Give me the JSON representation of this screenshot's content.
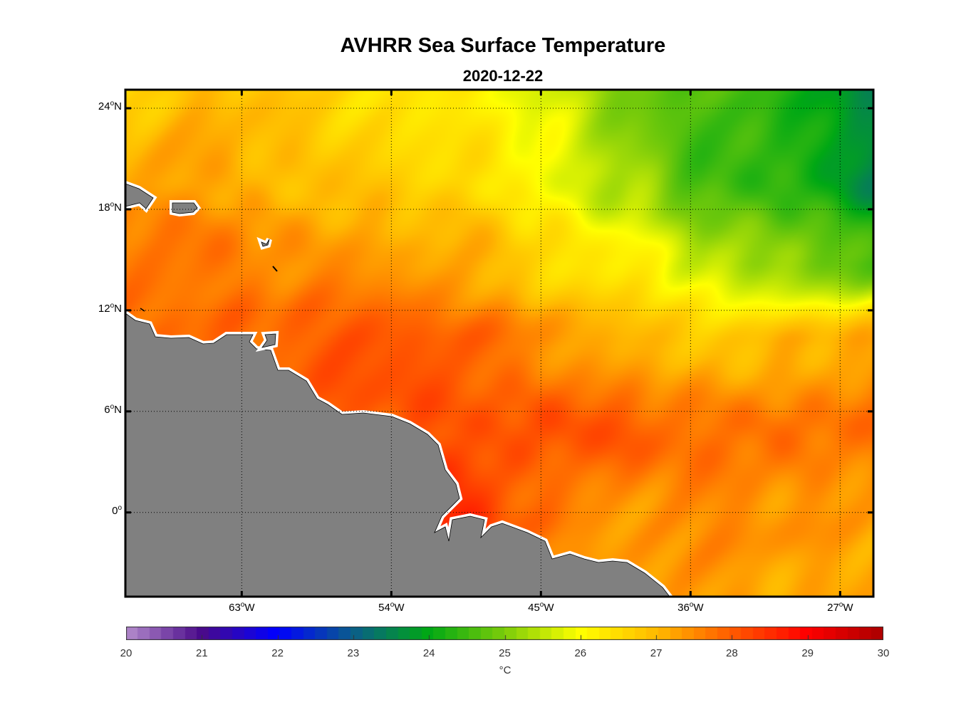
{
  "title": "AVHRR Sea Surface Temperature",
  "subtitle": "2020-12-22",
  "chart_data": {
    "type": "heatmap",
    "title": "AVHRR Sea Surface Temperature",
    "subtitle": "2020-12-22",
    "lon_range": [
      -70,
      -25
    ],
    "lat_range": [
      -5,
      25
    ],
    "grid_lons": [
      -70,
      -65,
      -60,
      -55,
      -50,
      -45,
      -40,
      -35,
      -30,
      -25
    ],
    "grid_lats": [
      25,
      20,
      15,
      10,
      5,
      0,
      -5
    ],
    "sst_celsius": [
      [
        26.5,
        27.0,
        26.8,
        26.5,
        26.3,
        25.8,
        25.0,
        24.7,
        24.3,
        23.5
      ],
      [
        27.3,
        27.2,
        27.0,
        26.8,
        26.5,
        26.0,
        25.3,
        24.5,
        24.2,
        23.6
      ],
      [
        27.8,
        27.7,
        27.5,
        27.3,
        27.2,
        26.6,
        26.2,
        25.5,
        25.0,
        24.7
      ],
      [
        27.9,
        27.8,
        27.9,
        28.1,
        28.0,
        27.5,
        27.0,
        26.8,
        27.0,
        27.3
      ],
      [
        28.0,
        28.0,
        28.0,
        28.0,
        28.1,
        28.2,
        28.0,
        27.7,
        27.8,
        27.8
      ],
      [
        28.0,
        28.0,
        28.0,
        28.2,
        28.6,
        27.7,
        27.4,
        27.5,
        27.4,
        27.3
      ],
      [
        27.5,
        27.5,
        27.5,
        27.5,
        27.5,
        27.5,
        27.3,
        27.3,
        27.2,
        27.2
      ]
    ],
    "x_ticks": [
      {
        "lon": -63,
        "label": "63",
        "suffix": "W"
      },
      {
        "lon": -54,
        "label": "54",
        "suffix": "W"
      },
      {
        "lon": -45,
        "label": "45",
        "suffix": "W"
      },
      {
        "lon": -36,
        "label": "36",
        "suffix": "W"
      },
      {
        "lon": -27,
        "label": "27",
        "suffix": "W"
      }
    ],
    "y_ticks": [
      {
        "lat": 24,
        "label": "24",
        "suffix": "N"
      },
      {
        "lat": 18,
        "label": "18",
        "suffix": "N"
      },
      {
        "lat": 12,
        "label": "12",
        "suffix": "N"
      },
      {
        "lat": 6,
        "label": "6",
        "suffix": "N"
      },
      {
        "lat": 0,
        "label": "0",
        "suffix": ""
      }
    ],
    "grid": "dotted",
    "colorbar": {
      "range": [
        20,
        30
      ],
      "ticks": [
        "20",
        "21",
        "22",
        "23",
        "24",
        "25",
        "26",
        "27",
        "28",
        "29",
        "30"
      ],
      "label": "°C",
      "placement": "bottom",
      "stops": [
        [
          20,
          "#b48ccc"
        ],
        [
          21,
          "#4a0a8a"
        ],
        [
          22,
          "#0000ff"
        ],
        [
          23,
          "#0a5e8a"
        ],
        [
          24,
          "#00a814"
        ],
        [
          25,
          "#7ccc0a"
        ],
        [
          26,
          "#ffff00"
        ],
        [
          27,
          "#ffba00"
        ],
        [
          28,
          "#ff5a00"
        ],
        [
          29,
          "#ff0000"
        ],
        [
          30,
          "#aa0000"
        ]
      ]
    },
    "land_color": "#808080"
  }
}
